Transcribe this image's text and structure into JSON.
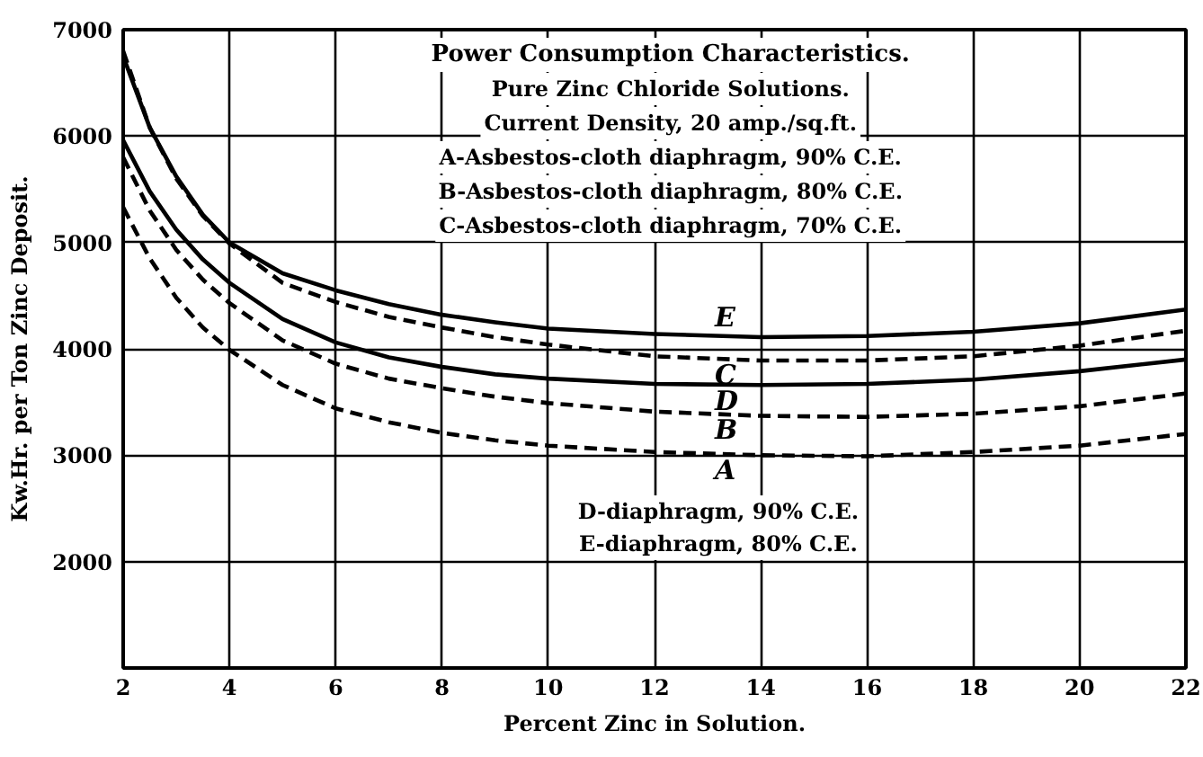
{
  "chart_data": {
    "type": "line",
    "title": "Power Consumption Characteristics.",
    "subtitle": "Pure Zinc Chloride Solutions.",
    "xlabel": "Percent Zinc in Solution.",
    "ylabel": "Kw.Hr. per Ton Zinc Deposit.",
    "annotations": [
      "Current Density, 20 amp./sq.ft.",
      "A-Asbestos-cloth diaphragm, 90% C.E.",
      "B-Asbestos-cloth diaphragm, 80% C.E.",
      "C-Asbestos-cloth diaphragm, 70% C.E.",
      "D-diaphragm, 90% C.E.",
      "E-diaphragm, 80% C.E."
    ],
    "x": [
      2,
      2.5,
      3,
      3.5,
      4,
      5,
      6,
      7,
      8,
      9,
      10,
      12,
      14,
      16,
      18,
      20,
      22
    ],
    "series": [
      {
        "name": "A",
        "color": "#000000",
        "line_style": "dashed",
        "values": [
          5330,
          4850,
          4480,
          4200,
          3990,
          3660,
          3440,
          3310,
          3210,
          3140,
          3090,
          3030,
          3000,
          2990,
          3030,
          3090,
          3200
        ]
      },
      {
        "name": "B",
        "color": "#000000",
        "line_style": "dashed",
        "values": [
          5800,
          5300,
          4930,
          4650,
          4430,
          4080,
          3860,
          3720,
          3630,
          3550,
          3490,
          3410,
          3370,
          3360,
          3390,
          3460,
          3580
        ]
      },
      {
        "name": "C",
        "color": "#000000",
        "line_style": "dashed",
        "values": [
          6800,
          6080,
          5600,
          5250,
          4990,
          4620,
          4440,
          4300,
          4200,
          4110,
          4040,
          3930,
          3890,
          3890,
          3930,
          4030,
          4170
        ]
      },
      {
        "name": "D",
        "color": "#000000",
        "line_style": "solid",
        "values": [
          5960,
          5480,
          5120,
          4840,
          4620,
          4280,
          4060,
          3920,
          3830,
          3760,
          3720,
          3670,
          3660,
          3670,
          3710,
          3790,
          3900
        ]
      },
      {
        "name": "E",
        "color": "#000000",
        "line_style": "solid",
        "values": [
          6750,
          6080,
          5620,
          5260,
          5000,
          4710,
          4550,
          4420,
          4320,
          4250,
          4190,
          4140,
          4110,
          4120,
          4160,
          4240,
          4370
        ]
      }
    ],
    "xlim": [
      2,
      22
    ],
    "ylim": [
      1000,
      7000
    ],
    "xticks": [
      2,
      4,
      6,
      8,
      10,
      12,
      14,
      16,
      18,
      20,
      22
    ],
    "yticks": [
      2000,
      3000,
      4000,
      5000,
      6000,
      7000
    ],
    "grid": true
  }
}
